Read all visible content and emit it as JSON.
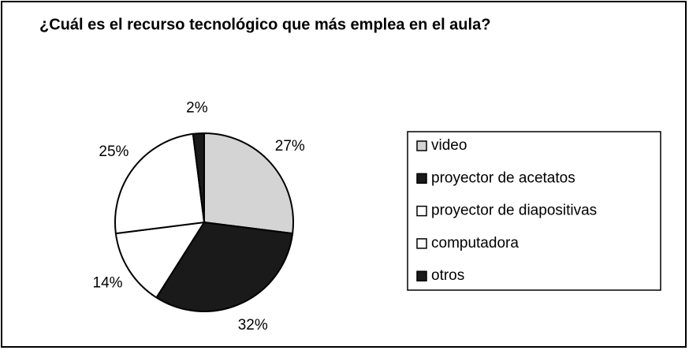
{
  "chart_data": {
    "type": "pie",
    "title": "¿Cuál es el recurso tecnológico que más emplea en el aula?",
    "categories": [
      "video",
      "proyector de acetatos",
      "proyector de diapositivas",
      "computadora",
      "otros"
    ],
    "values": [
      27,
      32,
      14,
      25,
      2
    ],
    "value_labels": [
      "27%",
      "32%",
      "14%",
      "25%",
      "2%"
    ],
    "colors": [
      "#d4d4d4",
      "#1a1a1a",
      "#ffffff",
      "#ffffff",
      "#1a1a1a"
    ],
    "legend": "right"
  }
}
